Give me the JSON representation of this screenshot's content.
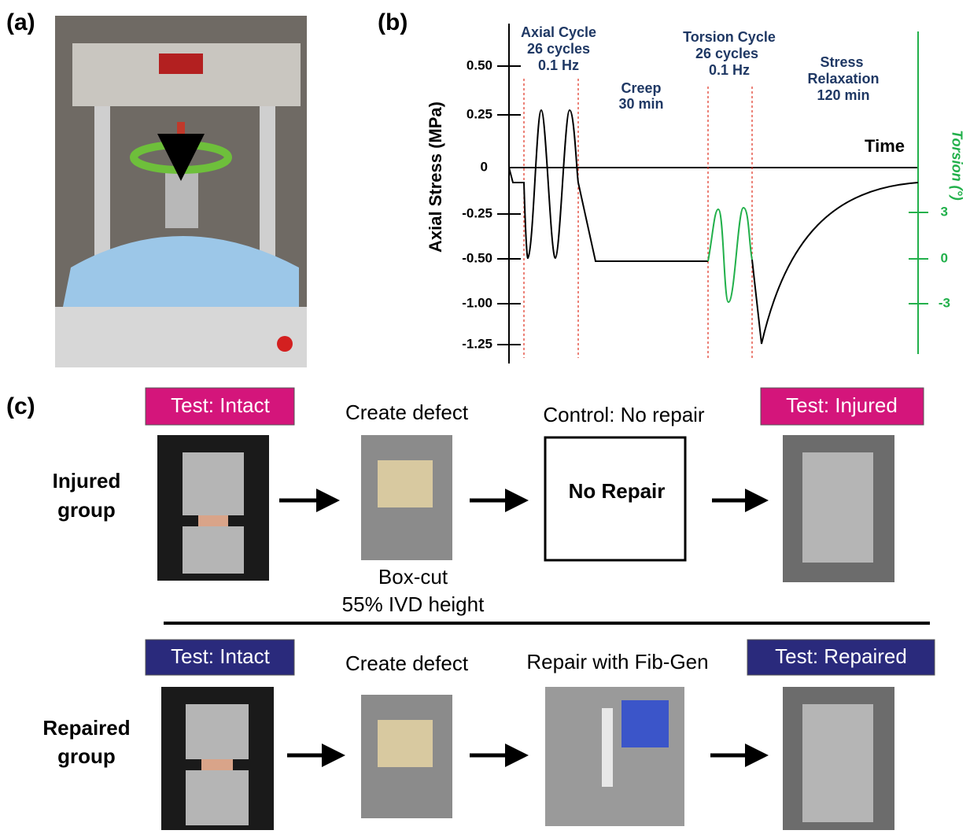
{
  "panel_a": {
    "label": "(a)"
  },
  "panel_b": {
    "label": "(b)",
    "y_axis_title": "Axial Stress (MPa)",
    "y2_axis_title": "Torsion (°)",
    "x_axis_title": "Time",
    "y_tick_labels": [
      "0.50",
      "0.25",
      "0",
      "-0.25",
      "-0.50",
      "-1.00",
      "-1.25"
    ],
    "y2_tick_labels": [
      "3",
      "0",
      "-3"
    ],
    "annotations": [
      [
        "Axial Cycle",
        "26 cycles",
        "0.1 Hz"
      ],
      [
        "Creep",
        "30 min"
      ],
      [
        "Torsion Cycle",
        "26 cycles",
        "0.1 Hz"
      ],
      [
        "Stress",
        "Relaxation",
        "120 min"
      ]
    ]
  },
  "panel_c": {
    "label": "(c)",
    "rows": [
      {
        "group": [
          "Injured",
          "group"
        ],
        "test_start": "Test: Intact",
        "step1": "Create defect",
        "step1_note": [
          "Box-cut",
          "55% IVD height"
        ],
        "step2": "Control: No repair",
        "step2_box": "No Repair",
        "test_end": "Test: Injured"
      },
      {
        "group": [
          "Repaired",
          "group"
        ],
        "test_start": "Test: Intact",
        "step1": "Create defect",
        "step2": "Repair with Fib-Gen",
        "test_end": "Test: Repaired"
      }
    ]
  }
}
